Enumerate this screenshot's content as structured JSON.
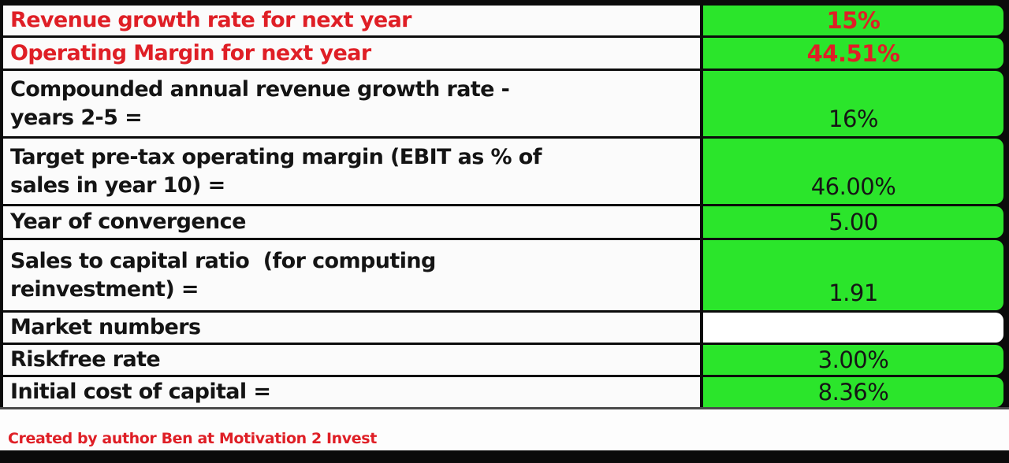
{
  "colors": {
    "value_cell_green": "#2be52b",
    "highlight_red": "#df1f26",
    "border_black": "#0b0b0b"
  },
  "table": {
    "rows": [
      {
        "label": "Revenue growth rate for next year",
        "value": "15%"
      },
      {
        "label": "Operating Margin for next year",
        "value": "44.51%"
      },
      {
        "label": "Compounded annual revenue growth rate -\nyears 2-5 =",
        "value": "16%"
      },
      {
        "label": "Target pre-tax operating margin (EBIT as % of\nsales in year 10) =",
        "value": "46.00%"
      },
      {
        "label": "Year of convergence",
        "value": "5.00"
      },
      {
        "label": "Sales to capital ratio  (for computing\nreinvestment) =",
        "value": "1.91"
      },
      {
        "label": "Market numbers",
        "value": ""
      },
      {
        "label": "Riskfree rate",
        "value": "3.00%"
      },
      {
        "label": "Initial cost of capital =",
        "value": "8.36%"
      }
    ]
  },
  "footer": {
    "credit": "Created by author Ben at Motivation 2 Invest"
  }
}
